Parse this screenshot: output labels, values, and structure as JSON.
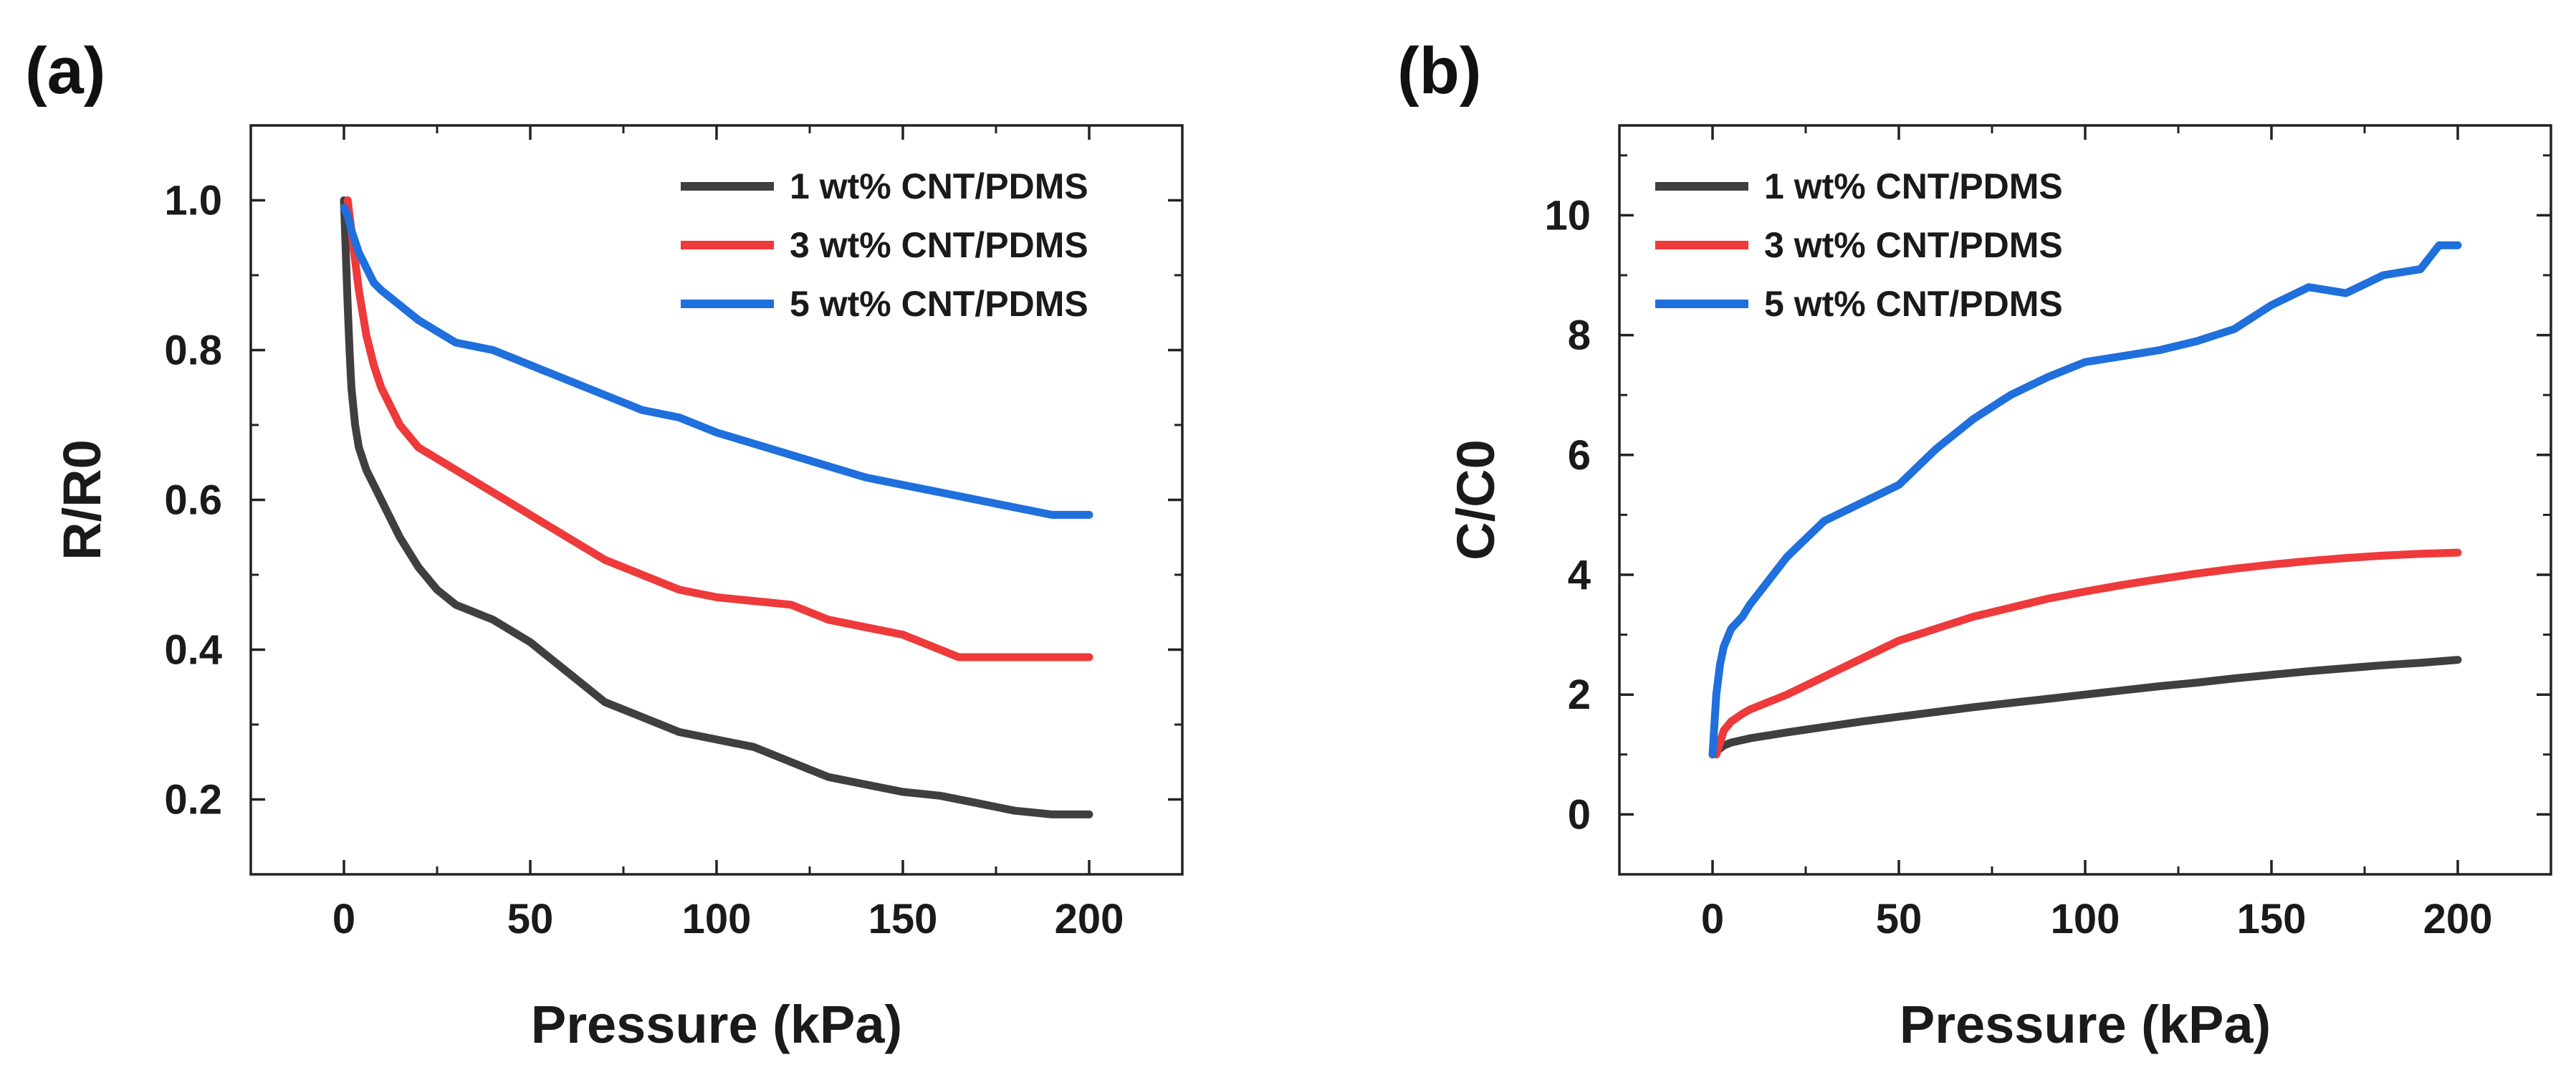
{
  "figure": {
    "panel_a_label": "(a)",
    "panel_b_label": "(b)"
  },
  "chart_data": [
    {
      "id": "a",
      "type": "line",
      "title": "",
      "xlabel": "Pressure (kPa)",
      "ylabel": "R/R0",
      "xlim": [
        -25,
        225
      ],
      "ylim": [
        0.1,
        1.1
      ],
      "xticks": [
        0,
        50,
        100,
        150,
        200
      ],
      "yticks": [
        0.2,
        0.4,
        0.6,
        0.8,
        1.0
      ],
      "xtick_labels": [
        "0",
        "50",
        "100",
        "150",
        "200"
      ],
      "ytick_labels": [
        "0.2",
        "0.4",
        "0.6",
        "0.8",
        "1.0"
      ],
      "legend_position": "top-right",
      "grid": false,
      "series": [
        {
          "name": "1 wt% CNT/PDMS",
          "color": "#3f3f3f",
          "x": [
            0,
            0.5,
            1,
            1.5,
            2,
            3,
            4,
            6,
            8,
            10,
            15,
            20,
            25,
            30,
            40,
            50,
            60,
            70,
            80,
            90,
            100,
            110,
            120,
            130,
            140,
            150,
            160,
            170,
            180,
            190,
            200
          ],
          "y": [
            1.0,
            0.93,
            0.86,
            0.8,
            0.75,
            0.7,
            0.67,
            0.64,
            0.62,
            0.6,
            0.55,
            0.51,
            0.48,
            0.46,
            0.44,
            0.41,
            0.37,
            0.33,
            0.31,
            0.29,
            0.28,
            0.27,
            0.25,
            0.23,
            0.22,
            0.21,
            0.205,
            0.195,
            0.185,
            0.18,
            0.18
          ]
        },
        {
          "name": "3 wt% CNT/PDMS",
          "color": "#ee3a3a",
          "x": [
            1,
            2,
            3,
            4,
            6,
            8,
            10,
            15,
            20,
            30,
            40,
            50,
            60,
            70,
            80,
            90,
            100,
            110,
            120,
            130,
            140,
            150,
            160,
            165,
            170,
            180,
            190,
            200
          ],
          "y": [
            1.0,
            0.96,
            0.92,
            0.88,
            0.82,
            0.78,
            0.75,
            0.7,
            0.67,
            0.64,
            0.61,
            0.58,
            0.55,
            0.52,
            0.5,
            0.48,
            0.47,
            0.465,
            0.46,
            0.44,
            0.43,
            0.42,
            0.4,
            0.39,
            0.39,
            0.39,
            0.39,
            0.39
          ]
        },
        {
          "name": "5 wt% CNT/PDMS",
          "color": "#1f6fdc",
          "x": [
            0,
            1,
            2,
            4,
            6,
            8,
            10,
            15,
            20,
            30,
            40,
            50,
            60,
            70,
            80,
            90,
            100,
            110,
            120,
            130,
            140,
            150,
            160,
            170,
            180,
            190,
            200
          ],
          "y": [
            0.99,
            0.98,
            0.96,
            0.93,
            0.91,
            0.89,
            0.88,
            0.86,
            0.84,
            0.81,
            0.8,
            0.78,
            0.76,
            0.74,
            0.72,
            0.71,
            0.69,
            0.675,
            0.66,
            0.645,
            0.63,
            0.62,
            0.61,
            0.6,
            0.59,
            0.58,
            0.58
          ]
        }
      ]
    },
    {
      "id": "b",
      "type": "line",
      "title": "",
      "xlabel": "Pressure (kPa)",
      "ylabel": "C/C0",
      "xlim": [
        -25,
        225
      ],
      "ylim": [
        -1,
        11.5
      ],
      "xticks": [
        0,
        50,
        100,
        150,
        200
      ],
      "yticks": [
        0,
        2,
        4,
        6,
        8,
        10
      ],
      "xtick_labels": [
        "0",
        "50",
        "100",
        "150",
        "200"
      ],
      "ytick_labels": [
        "0",
        "2",
        "4",
        "6",
        "8",
        "10"
      ],
      "legend_position": "top-left",
      "grid": false,
      "series": [
        {
          "name": "1 wt% CNT/PDMS",
          "color": "#3f3f3f",
          "x": [
            0,
            1,
            3,
            5,
            10,
            20,
            30,
            40,
            50,
            60,
            70,
            80,
            90,
            100,
            110,
            120,
            130,
            140,
            150,
            160,
            170,
            180,
            190,
            200
          ],
          "y": [
            1.0,
            1.05,
            1.15,
            1.2,
            1.27,
            1.37,
            1.46,
            1.55,
            1.63,
            1.71,
            1.79,
            1.86,
            1.93,
            2.0,
            2.07,
            2.14,
            2.2,
            2.27,
            2.33,
            2.39,
            2.44,
            2.49,
            2.53,
            2.58
          ]
        },
        {
          "name": "3 wt% CNT/PDMS",
          "color": "#ee3a3a",
          "x": [
            1,
            2,
            3,
            5,
            8,
            10,
            20,
            30,
            40,
            50,
            60,
            70,
            80,
            90,
            100,
            110,
            120,
            130,
            140,
            150,
            160,
            170,
            180,
            190,
            200
          ],
          "y": [
            1.0,
            1.2,
            1.4,
            1.55,
            1.68,
            1.75,
            2.0,
            2.3,
            2.6,
            2.9,
            3.1,
            3.3,
            3.45,
            3.6,
            3.72,
            3.83,
            3.93,
            4.02,
            4.1,
            4.17,
            4.23,
            4.28,
            4.32,
            4.35,
            4.37
          ]
        },
        {
          "name": "5 wt% CNT/PDMS",
          "color": "#1f6fdc",
          "x": [
            0,
            0.5,
            1,
            2,
            3,
            5,
            8,
            10,
            15,
            20,
            25,
            30,
            40,
            50,
            60,
            70,
            80,
            90,
            100,
            110,
            120,
            130,
            140,
            150,
            160,
            170,
            180,
            190,
            195,
            200
          ],
          "y": [
            1.0,
            1.5,
            2.0,
            2.5,
            2.8,
            3.1,
            3.3,
            3.5,
            3.9,
            4.3,
            4.6,
            4.9,
            5.2,
            5.5,
            6.1,
            6.6,
            7.0,
            7.3,
            7.55,
            7.65,
            7.75,
            7.9,
            8.1,
            8.5,
            8.8,
            8.7,
            9.0,
            9.1,
            9.5,
            9.5
          ]
        }
      ]
    }
  ]
}
